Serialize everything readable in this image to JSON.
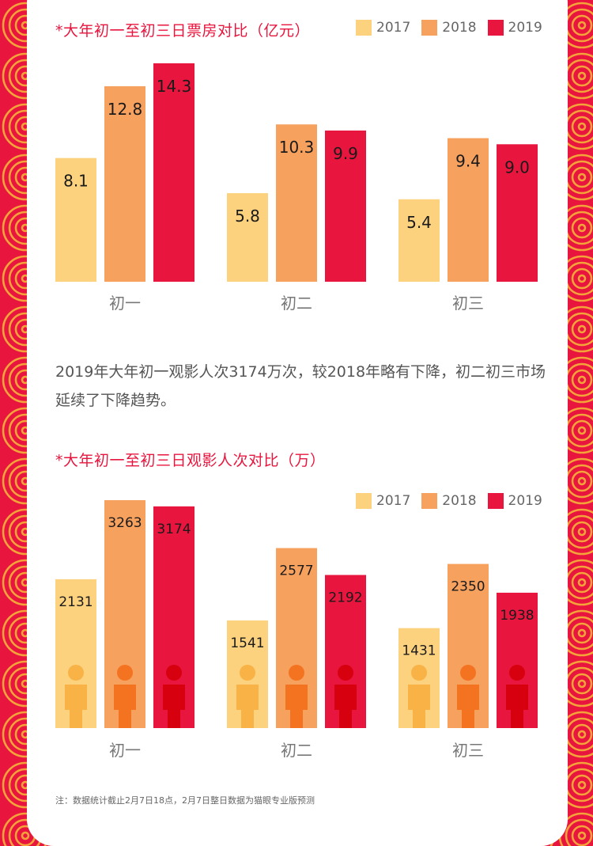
{
  "colors": {
    "y2017": "#fcd27f",
    "y2018": "#f7a15f",
    "y2019": "#e8163e",
    "person2017": "#f9b246",
    "person2018": "#f37321",
    "person2019": "#d7000f",
    "border_red": "#e8163e",
    "border_pattern": "#f4a23a"
  },
  "chart1": {
    "title": "*大年初一至初三日票房对比（亿元）"
  },
  "chart2": {
    "title": "*大年初一至初三日观影人次对比（万）"
  },
  "paragraph": "2019年大年初一观影人次3174万次，较2018年略有下降，初二初三市场延续了下降趋势。",
  "note": "注：数据统计截止2月7日18点，2月7日整日数据为猫眼专业版预测",
  "chart_data": [
    {
      "type": "bar",
      "title": "*大年初一至初三日票房对比（亿元）",
      "categories": [
        "初一",
        "初二",
        "初三"
      ],
      "series": [
        {
          "name": "2017",
          "values": [
            8.1,
            5.8,
            5.4
          ]
        },
        {
          "name": "2018",
          "values": [
            12.8,
            10.3,
            9.4
          ]
        },
        {
          "name": "2019",
          "values": [
            14.3,
            9.9,
            9.0
          ]
        }
      ],
      "value_labels": [
        [
          "8.1",
          "5.8",
          "5.4"
        ],
        [
          "12.8",
          "10.3",
          "9.4"
        ],
        [
          "14.3",
          "9.9",
          "9.0"
        ]
      ],
      "ylim": [
        0,
        14.3
      ],
      "legend": "top-right",
      "grid": false
    },
    {
      "type": "bar",
      "title": "*大年初一至初三日观影人次对比（万）",
      "categories": [
        "初一",
        "初二",
        "初三"
      ],
      "series": [
        {
          "name": "2017",
          "values": [
            2131,
            1541,
            1431
          ]
        },
        {
          "name": "2018",
          "values": [
            3263,
            2577,
            2350
          ]
        },
        {
          "name": "2019",
          "values": [
            3174,
            2192,
            1938
          ]
        }
      ],
      "value_labels": [
        [
          "2131",
          "1541",
          "1431"
        ],
        [
          "3263",
          "2577",
          "2350"
        ],
        [
          "3174",
          "2192",
          "1938"
        ]
      ],
      "ylim": [
        0,
        3263
      ],
      "legend": "top-right",
      "grid": false
    }
  ]
}
